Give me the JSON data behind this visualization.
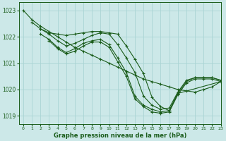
{
  "background_color": "#cce8e8",
  "grid_color": "#aad4d4",
  "line_color": "#1a5c1a",
  "title": "Graphe pression niveau de la mer (hPa)",
  "xlim": [
    -0.5,
    23
  ],
  "ylim": [
    1018.7,
    1023.3
  ],
  "yticks": [
    1019,
    1020,
    1021,
    1022,
    1023
  ],
  "xticks": [
    0,
    1,
    2,
    3,
    4,
    5,
    6,
    7,
    8,
    9,
    10,
    11,
    12,
    13,
    14,
    15,
    16,
    17,
    18,
    19,
    20,
    21,
    22,
    23
  ],
  "lines": [
    {
      "x": [
        0,
        1,
        2,
        3,
        4,
        5,
        6,
        7,
        8,
        9,
        10,
        11,
        12,
        13,
        14,
        15,
        16,
        17,
        18,
        19,
        20,
        21,
        22,
        23
      ],
      "y": [
        1023.0,
        1022.65,
        1022.4,
        1022.2,
        1022.0,
        1021.8,
        1021.6,
        1021.45,
        1021.3,
        1021.15,
        1021.0,
        1020.85,
        1020.7,
        1020.55,
        1020.4,
        1020.3,
        1020.2,
        1020.1,
        1020.0,
        1019.95,
        1019.9,
        1020.0,
        1020.1,
        1020.3
      ]
    },
    {
      "x": [
        1,
        2,
        3,
        4,
        5,
        6,
        7,
        8,
        9,
        10,
        11,
        12,
        13,
        14,
        15,
        16,
        17,
        18,
        19,
        20,
        21,
        22,
        23
      ],
      "y": [
        1022.55,
        1022.3,
        1022.15,
        1022.1,
        1022.05,
        1022.1,
        1022.15,
        1022.2,
        1022.2,
        1022.15,
        1022.1,
        1021.65,
        1021.15,
        1020.6,
        1019.7,
        1019.35,
        1019.2,
        1019.85,
        1020.3,
        1020.45,
        1020.45,
        1020.45,
        1020.35
      ]
    },
    {
      "x": [
        2,
        3,
        4,
        5,
        6,
        7,
        8,
        9,
        10,
        11,
        12,
        13,
        14,
        15,
        16,
        17,
        18,
        19,
        20,
        21,
        22,
        23
      ],
      "y": [
        1022.3,
        1022.1,
        1021.85,
        1021.65,
        1021.75,
        1021.9,
        1022.05,
        1022.15,
        1022.1,
        1021.7,
        1021.2,
        1020.65,
        1019.75,
        1019.4,
        1019.25,
        1019.3,
        1019.9,
        1020.35,
        1020.45,
        1020.45,
        1020.45,
        1020.35
      ]
    },
    {
      "x": [
        2,
        3,
        4,
        5,
        6,
        7,
        8,
        9,
        10,
        11,
        12,
        13,
        14,
        15,
        16,
        17,
        18,
        23
      ],
      "y": [
        1022.1,
        1021.9,
        1021.6,
        1021.4,
        1021.55,
        1021.75,
        1021.85,
        1021.9,
        1021.7,
        1021.2,
        1020.65,
        1019.75,
        1019.4,
        1019.25,
        1019.15,
        1019.2,
        1019.85,
        1020.3
      ]
    },
    {
      "x": [
        3,
        4,
        5,
        6,
        7,
        8,
        9,
        10,
        11,
        12,
        13,
        14,
        15,
        16,
        17,
        18,
        19,
        20,
        21,
        22,
        23
      ],
      "y": [
        1021.85,
        1021.55,
        1021.35,
        1021.45,
        1021.65,
        1021.8,
        1021.8,
        1021.6,
        1021.05,
        1020.5,
        1019.65,
        1019.35,
        1019.15,
        1019.1,
        1019.15,
        1019.8,
        1020.25,
        1020.4,
        1020.4,
        1020.4,
        1020.3
      ]
    }
  ]
}
